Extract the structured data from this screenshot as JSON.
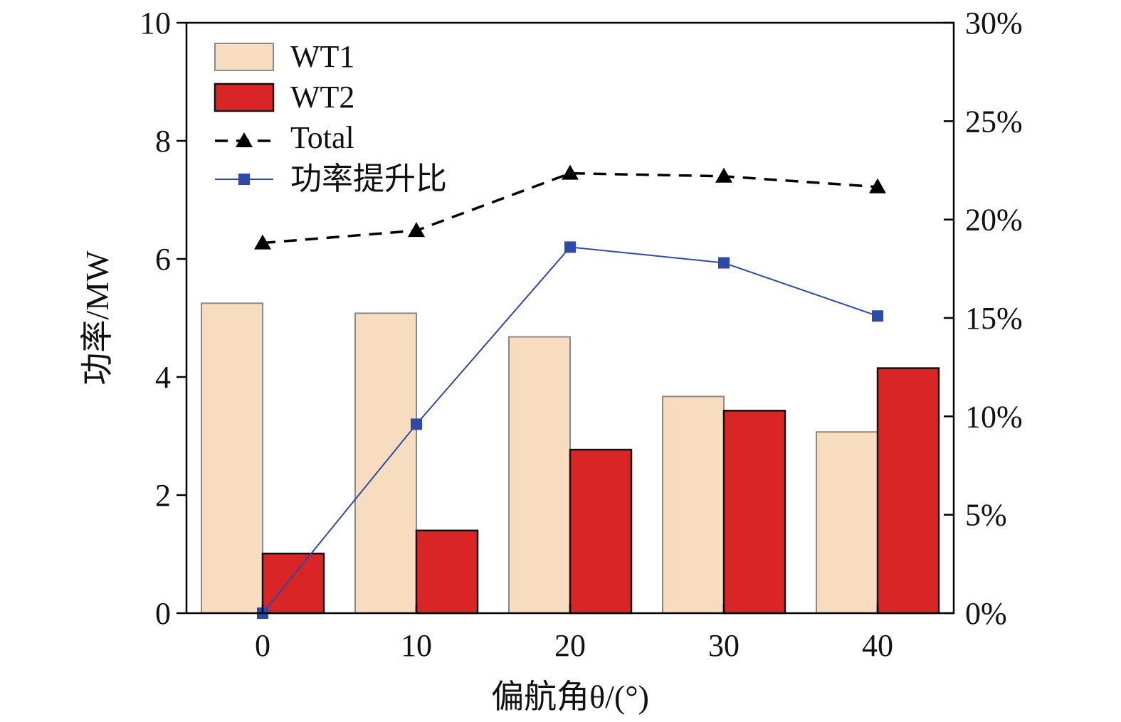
{
  "chart_data": {
    "type": "bar",
    "categories": [
      "0",
      "10",
      "20",
      "30",
      "40"
    ],
    "x_values": [
      0,
      10,
      20,
      30,
      40
    ],
    "xlabel": "偏航角θ/(°)",
    "ylabel": "功率/MW",
    "ylim": [
      0,
      10
    ],
    "yticks": [
      "0",
      "2",
      "4",
      "6",
      "8",
      "10"
    ],
    "y2lim": [
      0,
      30
    ],
    "y2ticks": [
      "0%",
      "5%",
      "10%",
      "15%",
      "20%",
      "25%",
      "30%"
    ],
    "legend_position": "top-left",
    "grid": false,
    "series": [
      {
        "name": "WT1",
        "type": "bar",
        "axis": "left",
        "values": [
          5.25,
          5.08,
          4.68,
          3.67,
          3.07
        ],
        "color": "#f8dcc0"
      },
      {
        "name": "WT2",
        "type": "bar",
        "axis": "left",
        "values": [
          1.01,
          1.4,
          2.77,
          3.43,
          4.15
        ],
        "color": "#d92525"
      },
      {
        "name": "Total",
        "type": "line",
        "axis": "left",
        "values": [
          6.27,
          6.48,
          7.45,
          7.4,
          7.22
        ],
        "color": "#000000",
        "marker": "triangle",
        "line_style": "dashed"
      },
      {
        "name": "功率提升比",
        "type": "line",
        "axis": "right",
        "values": [
          0.0,
          9.6,
          18.6,
          17.8,
          15.1
        ],
        "color": "#2e4aa8",
        "marker": "square",
        "line_style": "solid"
      }
    ]
  }
}
